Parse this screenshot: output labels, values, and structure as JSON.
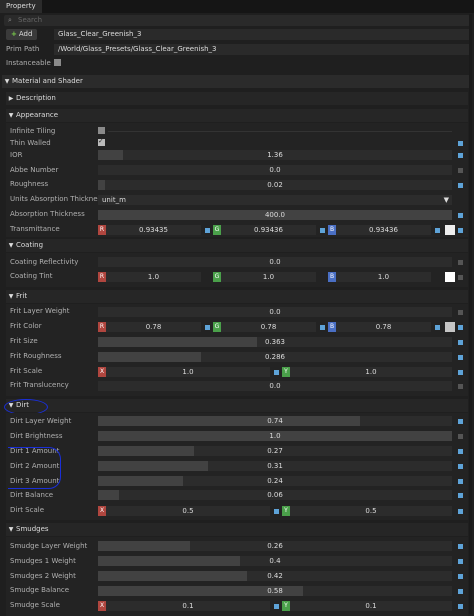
{
  "tab": "Property",
  "search_placeholder": "Search",
  "add_label": "Add",
  "prim_name": "Glass_Clear_Greenish_3",
  "prim_path_label": "Prim Path",
  "prim_path": "/World/Glass_Presets/Glass_Clear_Greenish_3",
  "instanceable_label": "Instanceable",
  "sections": {
    "material": "Material and Shader",
    "description": "Description",
    "appearance": "Appearance",
    "coating": "Coating",
    "frit": "Frit",
    "dirt": "Dirt",
    "smudges": "Smudges"
  },
  "appearance": {
    "infinite_tiling": "Infinite Tiling",
    "thin_walled": "Thin Walled",
    "ior": {
      "label": "IOR",
      "value": "1.36",
      "fraction": 0.07
    },
    "abbe": {
      "label": "Abbe Number",
      "value": "0.0",
      "fraction": 0.0
    },
    "roughness": {
      "label": "Roughness",
      "value": "0.02",
      "fraction": 0.02
    },
    "units": {
      "label": "Units Absorption Thickness",
      "value": "unit_m"
    },
    "absorption": {
      "label": "Absorption Thickness",
      "value": "400.0",
      "fraction": 1.0
    },
    "transmittance": {
      "label": "Transmittance",
      "r": "0.93435",
      "g": "0.93436",
      "b": "0.93436",
      "swatch": "#eeeeee"
    }
  },
  "coating": {
    "reflectivity": {
      "label": "Coating Reflectivity",
      "value": "0.0",
      "fraction": 0.0
    },
    "tint": {
      "label": "Coating Tint",
      "r": "1.0",
      "g": "1.0",
      "b": "1.0",
      "swatch": "#ffffff"
    }
  },
  "frit": {
    "layer_weight": {
      "label": "Frit Layer Weight",
      "value": "0.0",
      "fraction": 0.0
    },
    "color": {
      "label": "Frit Color",
      "r": "0.78",
      "g": "0.78",
      "b": "0.78",
      "swatch": "#c6c6c6"
    },
    "size": {
      "label": "Frit Size",
      "value": "0.363",
      "fraction": 0.45
    },
    "roughness": {
      "label": "Frit Roughness",
      "value": "0.286",
      "fraction": 0.29
    },
    "scale": {
      "label": "Frit Scale",
      "x": "1.0",
      "y": "1.0"
    },
    "translucency": {
      "label": "Frit Translucency",
      "value": "0.0",
      "fraction": 0.0
    }
  },
  "dirt": {
    "layer_weight": {
      "label": "Dirt Layer Weight",
      "value": "0.74",
      "fraction": 0.74
    },
    "brightness": {
      "label": "Dirt Brightness",
      "value": "1.0",
      "fraction": 1.0
    },
    "amount1": {
      "label": "Dirt 1 Amount",
      "value": "0.27",
      "fraction": 0.27
    },
    "amount2": {
      "label": "Dirt 2 Amount",
      "value": "0.31",
      "fraction": 0.31
    },
    "amount3": {
      "label": "Dirt 3 Amount",
      "value": "0.24",
      "fraction": 0.24
    },
    "balance": {
      "label": "Dirt Balance",
      "value": "0.06",
      "fraction": 0.06
    },
    "scale": {
      "label": "Dirt Scale",
      "x": "0.5",
      "y": "0.5"
    }
  },
  "smudges": {
    "layer_weight": {
      "label": "Smudge Layer Weight",
      "value": "0.26",
      "fraction": 0.26
    },
    "w1": {
      "label": "Smudges 1 Weight",
      "value": "0.4",
      "fraction": 0.4
    },
    "w2": {
      "label": "Smudges 2 Weight",
      "value": "0.42",
      "fraction": 0.42
    },
    "balance": {
      "label": "Smudge Balance",
      "value": "0.58",
      "fraction": 0.58
    },
    "scale": {
      "label": "Smudge Scale",
      "x": "0.1",
      "y": "0.1"
    }
  },
  "tags": {
    "r": "R",
    "g": "G",
    "b": "B",
    "x": "X",
    "y": "Y"
  },
  "colors": {
    "accent": "#5ea3d8",
    "r": "#b0463f",
    "g": "#4aa04a",
    "b": "#4a6fc4",
    "annotation": "#1a2fd8"
  }
}
